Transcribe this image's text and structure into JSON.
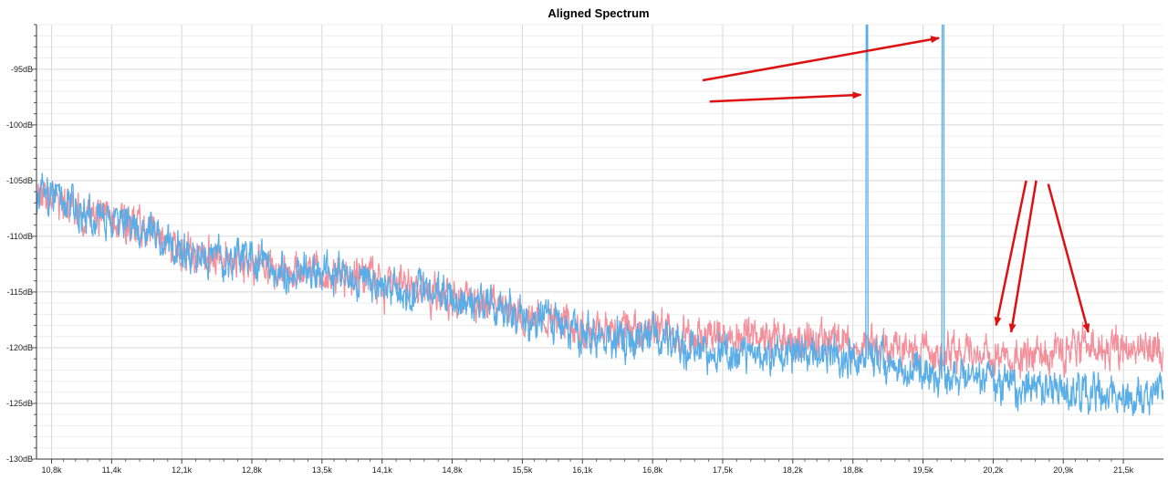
{
  "chart_data": {
    "type": "line",
    "title": "Aligned Spectrum",
    "xlabel": "",
    "ylabel": "",
    "x_ticks": [
      10800,
      11400,
      12100,
      12800,
      13500,
      14100,
      14800,
      15500,
      16100,
      16800,
      17500,
      18200,
      18800,
      19500,
      20200,
      20900,
      21500
    ],
    "x_tick_labels": [
      "10,8k",
      "11,4k",
      "12,1k",
      "12,8k",
      "13,5k",
      "14,1k",
      "14,8k",
      "15,5k",
      "16,1k",
      "16,8k",
      "17,5k",
      "18,2k",
      "18,8k",
      "19,5k",
      "20,2k",
      "20,9k",
      "21,5k"
    ],
    "y_ticks": [
      -95,
      -100,
      -105,
      -110,
      -115,
      -120,
      -125,
      -130
    ],
    "y_tick_labels": [
      "-95dB",
      "-100dB",
      "-105dB",
      "-110dB",
      "-115dB",
      "-120dB",
      "-125dB",
      "-130dB"
    ],
    "xlim": [
      10650,
      21900
    ],
    "ylim": [
      -130,
      -91
    ],
    "grid": true,
    "colors": {
      "blue": "#5aaee8",
      "pink": "#f4909c",
      "arrow": "#dd1111"
    },
    "series": [
      {
        "color": "#f4909c",
        "x": [
          10650,
          11000,
          11400,
          11800,
          12100,
          12500,
          12800,
          13200,
          13500,
          13900,
          14100,
          14500,
          14800,
          15200,
          15500,
          15800,
          16100,
          16400,
          16800,
          17100,
          17500,
          17800,
          18200,
          18500,
          18800,
          19100,
          19500,
          19800,
          20200,
          20500,
          20900,
          21200,
          21500,
          21900
        ],
        "y": [
          -106,
          -107.5,
          -108.5,
          -109.5,
          -111.5,
          -112,
          -112.5,
          -113.5,
          -113.5,
          -113.5,
          -114.5,
          -115,
          -115.5,
          -116,
          -117,
          -117.5,
          -118,
          -118.5,
          -118,
          -119,
          -119,
          -119,
          -119.5,
          -119,
          -119.5,
          -120,
          -120.5,
          -120.5,
          -120.8,
          -120.5,
          -120.5,
          -120,
          -120,
          -120
        ]
      },
      {
        "color": "#5aaee8",
        "x": [
          10650,
          11000,
          11400,
          11800,
          12100,
          12500,
          12800,
          13200,
          13500,
          13900,
          14100,
          14500,
          14800,
          15200,
          15500,
          15800,
          16100,
          16400,
          16800,
          17100,
          17500,
          17800,
          18200,
          18500,
          18800,
          19100,
          19500,
          19800,
          20200,
          20500,
          20900,
          21200,
          21500,
          21900
        ],
        "y": [
          -106,
          -107.5,
          -108.5,
          -109.5,
          -111.5,
          -112,
          -112.5,
          -113.5,
          -113.5,
          -113.5,
          -114.5,
          -115,
          -115.5,
          -116,
          -117,
          -117.8,
          -118.5,
          -119.5,
          -119,
          -120,
          -120.5,
          -121,
          -121,
          -120.3,
          -121,
          -121.5,
          -122,
          -122.5,
          -123,
          -123.5,
          -123.8,
          -124,
          -124.5,
          -124.5
        ],
        "peaks": [
          {
            "x": 18940,
            "y": -96.2
          },
          {
            "x": 19700,
            "y": -92.1
          }
        ]
      }
    ],
    "annotations": [
      {
        "type": "arrow",
        "from": [
          17300,
          -96
        ],
        "to": [
          19660,
          -92.2
        ]
      },
      {
        "type": "arrow",
        "from": [
          17370,
          -97.9
        ],
        "to": [
          18880,
          -97.3
        ]
      },
      {
        "type": "arrow",
        "from": [
          20530,
          -105
        ],
        "to": [
          20230,
          -118
        ]
      },
      {
        "type": "arrow",
        "from": [
          20630,
          -105
        ],
        "to": [
          20380,
          -118.6
        ]
      },
      {
        "type": "arrow",
        "from": [
          20750,
          -105.3
        ],
        "to": [
          21150,
          -118.6
        ]
      }
    ]
  }
}
